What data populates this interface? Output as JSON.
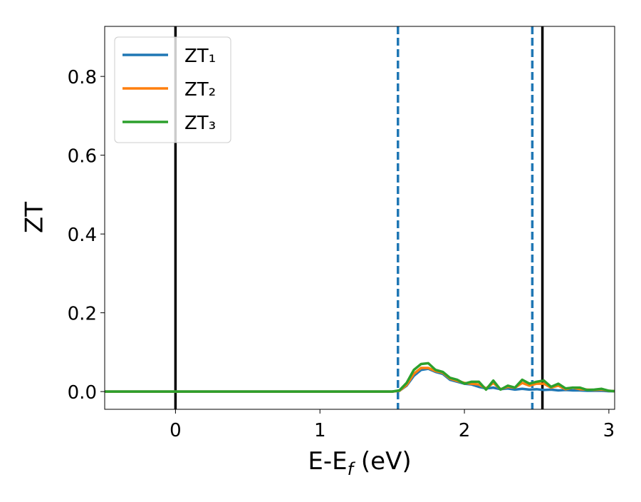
{
  "chart_data": {
    "type": "line",
    "xlabel_parts": [
      "E-E",
      "f",
      " (eV)"
    ],
    "ylabel": "ZT",
    "x": [
      -0.49,
      0,
      0.5,
      1,
      1.5,
      1.55,
      1.6,
      1.65,
      1.7,
      1.75,
      1.8,
      1.85,
      1.9,
      1.95,
      2,
      2.05,
      2.1,
      2.15,
      2.2,
      2.25,
      2.3,
      2.35,
      2.4,
      2.45,
      2.5,
      2.55,
      2.6,
      2.65,
      2.7,
      2.75,
      2.8,
      2.85,
      2.9,
      2.95,
      3,
      3.04
    ],
    "series": [
      {
        "name": "ZT₁",
        "color": "#1f77b4",
        "values": [
          0,
          0,
          0,
          0,
          0,
          0.002,
          0.015,
          0.04,
          0.055,
          0.058,
          0.05,
          0.045,
          0.03,
          0.025,
          0.02,
          0.018,
          0.012,
          0.008,
          0.01,
          0.006,
          0.008,
          0.005,
          0.007,
          0.005,
          0.006,
          0.004,
          0.005,
          0.003,
          0.004,
          0.003,
          0.003,
          0.002,
          0.002,
          0.002,
          0.001,
          0.001
        ]
      },
      {
        "name": "ZT₂",
        "color": "#ff7f0e",
        "values": [
          0,
          0,
          0,
          0,
          0,
          0.002,
          0.017,
          0.045,
          0.06,
          0.06,
          0.052,
          0.048,
          0.033,
          0.027,
          0.022,
          0.02,
          0.018,
          0.008,
          0.022,
          0.006,
          0.012,
          0.01,
          0.022,
          0.015,
          0.02,
          0.02,
          0.01,
          0.015,
          0.006,
          0.01,
          0.006,
          0.005,
          0.004,
          0.005,
          0.002,
          0.001
        ]
      },
      {
        "name": "ZT₃",
        "color": "#2ca02c",
        "values": [
          0,
          0,
          0,
          0,
          0,
          0.003,
          0.022,
          0.055,
          0.07,
          0.072,
          0.055,
          0.05,
          0.035,
          0.03,
          0.02,
          0.025,
          0.025,
          0.005,
          0.028,
          0.005,
          0.015,
          0.01,
          0.03,
          0.02,
          0.025,
          0.028,
          0.012,
          0.02,
          0.008,
          0.01,
          0.01,
          0.004,
          0.005,
          0.007,
          0.002,
          0.001
        ]
      }
    ],
    "vlines": [
      {
        "x": 0,
        "color": "#000000",
        "dashed": false
      },
      {
        "x": 2.54,
        "color": "#000000",
        "dashed": false
      },
      {
        "x": 1.54,
        "color": "#1f77b4",
        "dashed": true
      },
      {
        "x": 2.47,
        "color": "#1f77b4",
        "dashed": true
      }
    ],
    "xlim": [
      -0.49,
      3.04
    ],
    "ylim": [
      -0.045,
      0.927
    ],
    "xticks": [
      0,
      1,
      2,
      3
    ],
    "yticks": [
      {
        "value": 0,
        "label": "0.0"
      },
      0.2,
      0.4,
      0.6,
      0.8
    ],
    "grid": false,
    "legend": "upper-left"
  }
}
